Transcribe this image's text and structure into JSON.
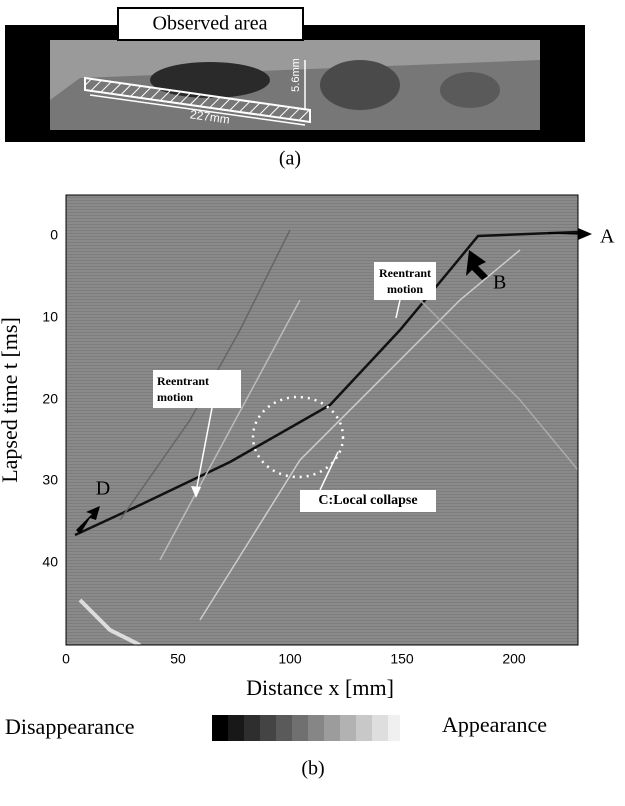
{
  "panel_a": {
    "label": "Observed area",
    "length": "227mm",
    "height": "5.6mm",
    "caption": "(a)"
  },
  "panel_b": {
    "y_label": "Lapsed time t [ms]",
    "x_label": "Distance x [mm]",
    "yticks": [
      "0",
      "10",
      "20",
      "30",
      "40"
    ],
    "xticks": [
      "0",
      "50",
      "100",
      "150",
      "200"
    ],
    "annotations": {
      "a": "A",
      "b": "B",
      "d": "D",
      "reentrant_1": "Reentrant motion",
      "reentrant_2": "Reentrant motion",
      "collapse": "C:Local collapse"
    },
    "scale_left": "Disappearance",
    "scale_right": "Appearance",
    "caption": "(b)"
  }
}
